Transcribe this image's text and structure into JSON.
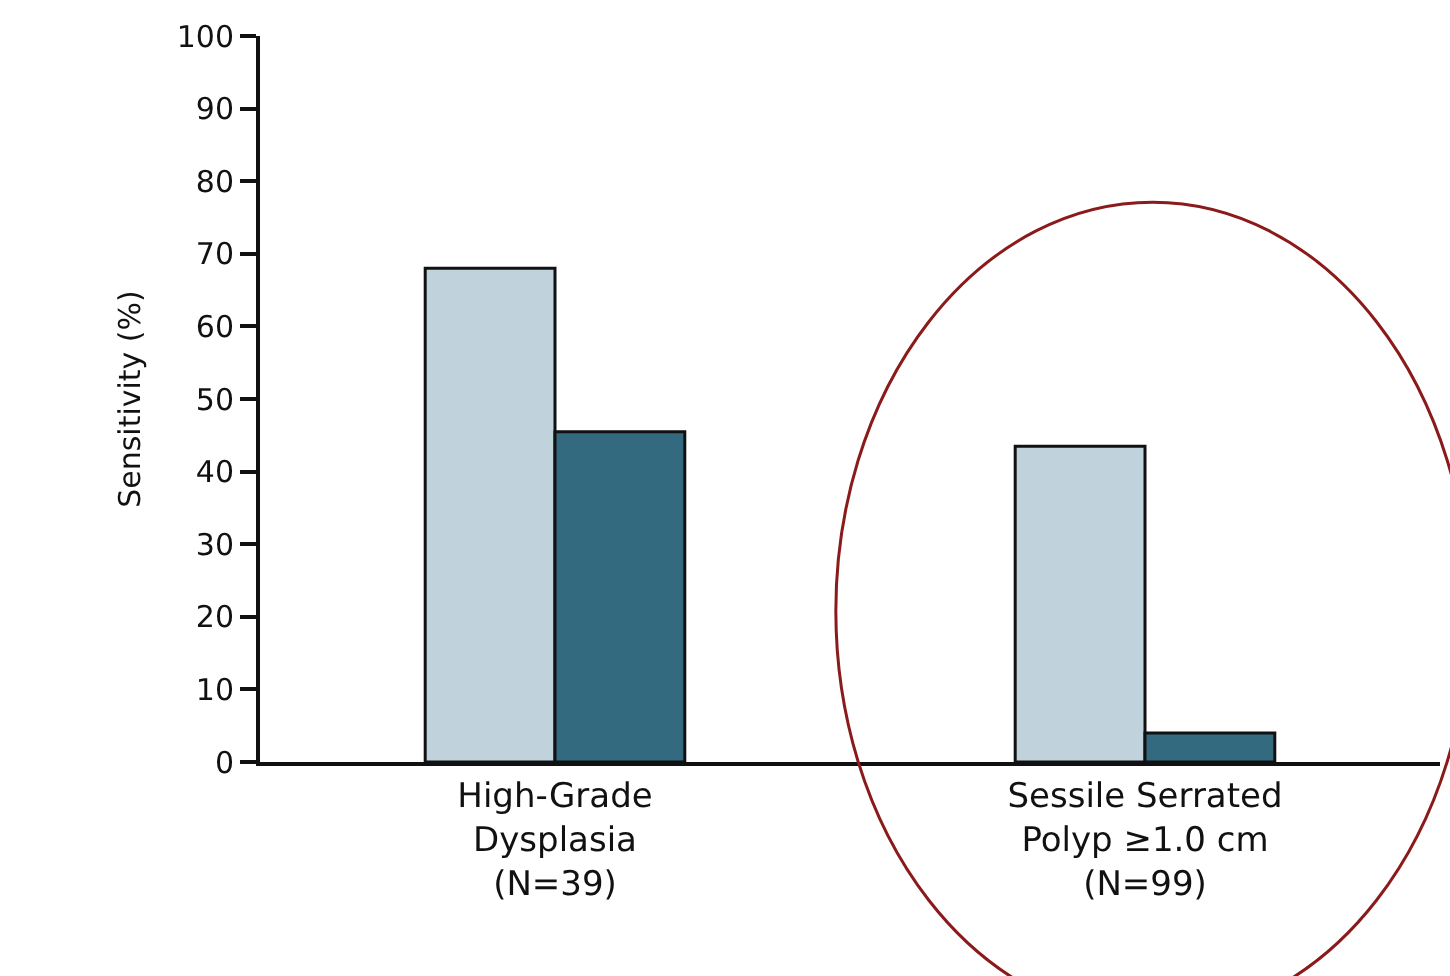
{
  "chart_data": {
    "type": "bar",
    "ylabel": "Sensitivity (%)",
    "categories": [
      "High-Grade\nDysplasia\n(N=39)",
      "Sessile Serrated\nPolyp ≥1.0 cm\n(N=99)"
    ],
    "series": [
      {
        "color": "#c0d3dc",
        "values": [
          68,
          43.5
        ]
      },
      {
        "color": "#336a80",
        "values": [
          45.5,
          4
        ]
      }
    ],
    "ylim": [
      0,
      100
    ],
    "yticks": [
      0,
      10,
      20,
      30,
      40,
      50,
      60,
      70,
      80,
      90,
      100
    ]
  }
}
